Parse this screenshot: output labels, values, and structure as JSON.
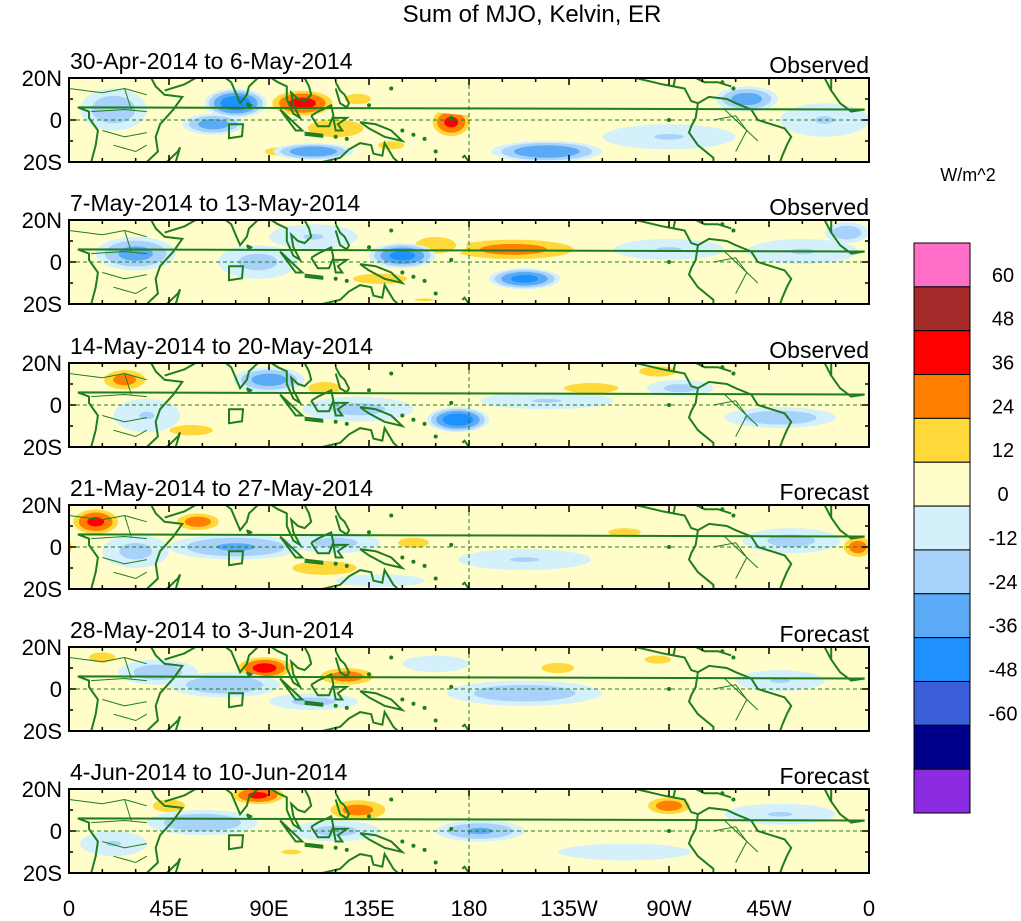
{
  "title": "Sum of MJO, Kelvin, ER",
  "colors": {
    "coast": "#1e7d1e",
    "background_panel": "#ffffff",
    "bins": [
      "#8a2be2",
      "#00008b",
      "#3a5fd9",
      "#1e90ff",
      "#5aaaf6",
      "#a8d2fa",
      "#d4f0fb",
      "#fffdca",
      "#ffd93a",
      "#ff7f00",
      "#ff0000",
      "#a52a2a",
      "#ff6ec7"
    ]
  },
  "colorbar": {
    "unit": "W/m^2",
    "levels": [
      60,
      48,
      36,
      24,
      12,
      0,
      -12,
      -24,
      -36,
      -48,
      -60
    ],
    "level_labels": [
      "60",
      "48",
      "36",
      "24",
      "12",
      "0",
      "-12",
      "-24",
      "-36",
      "-48",
      "-60"
    ]
  },
  "lat_labels": [
    "20N",
    "0",
    "20S"
  ],
  "lon_labels": [
    "0",
    "45E",
    "90E",
    "135E",
    "180",
    "135W",
    "90W",
    "45W",
    "0"
  ],
  "panels": [
    {
      "title": "30-Apr-2014 to 6-May-2014",
      "type": "Observed",
      "anomalies": [
        {
          "lon": 105,
          "lat": 8,
          "rx": 16,
          "ry": 7,
          "v": 40
        },
        {
          "lon": 120,
          "lat": -4,
          "rx": 18,
          "ry": 6,
          "v": 22
        },
        {
          "lon": 130,
          "lat": 10,
          "rx": 12,
          "ry": 5,
          "v": 15
        },
        {
          "lon": 145,
          "lat": -12,
          "rx": 12,
          "ry": 4,
          "v": 15
        },
        {
          "lon": 172,
          "lat": -1,
          "rx": 10,
          "ry": 8,
          "v": 38
        },
        {
          "lon": 190,
          "lat": 8,
          "rx": 35,
          "ry": 6,
          "v": 8
        },
        {
          "lon": 95,
          "lat": -15,
          "rx": 14,
          "ry": 4,
          "v": 15
        },
        {
          "lon": 75,
          "lat": 8,
          "rx": 14,
          "ry": 7,
          "v": -45
        },
        {
          "lon": 65,
          "lat": -2,
          "rx": 14,
          "ry": 5,
          "v": -30
        },
        {
          "lon": 20,
          "lat": 5,
          "rx": 15,
          "ry": 10,
          "v": -20
        },
        {
          "lon": 110,
          "lat": -15,
          "rx": 18,
          "ry": 4,
          "v": -35
        },
        {
          "lon": 215,
          "lat": -15,
          "rx": 25,
          "ry": 5,
          "v": -35
        },
        {
          "lon": 305,
          "lat": 10,
          "rx": 14,
          "ry": 6,
          "v": -30
        },
        {
          "lon": 270,
          "lat": -8,
          "rx": 30,
          "ry": 6,
          "v": -12
        },
        {
          "lon": 340,
          "lat": 0,
          "rx": 20,
          "ry": 8,
          "v": -12
        },
        {
          "lon": 250,
          "lat": 12,
          "rx": 25,
          "ry": 5,
          "v": 5
        }
      ]
    },
    {
      "title": "7-May-2014 to 13-May-2014",
      "type": "Observed",
      "anomalies": [
        {
          "lon": 200,
          "lat": 6,
          "rx": 35,
          "ry": 6,
          "v": 28
        },
        {
          "lon": 165,
          "lat": 8,
          "rx": 14,
          "ry": 6,
          "v": 20
        },
        {
          "lon": 140,
          "lat": -8,
          "rx": 25,
          "ry": 5,
          "v": 15
        },
        {
          "lon": 160,
          "lat": -18,
          "rx": 20,
          "ry": 3,
          "v": 12
        },
        {
          "lon": 50,
          "lat": -12,
          "rx": 20,
          "ry": 5,
          "v": 8
        },
        {
          "lon": 150,
          "lat": 3,
          "rx": 15,
          "ry": 6,
          "v": -40
        },
        {
          "lon": 205,
          "lat": -8,
          "rx": 16,
          "ry": 5,
          "v": -40
        },
        {
          "lon": 30,
          "lat": 4,
          "rx": 18,
          "ry": 8,
          "v": -28
        },
        {
          "lon": 85,
          "lat": 0,
          "rx": 18,
          "ry": 8,
          "v": -15
        },
        {
          "lon": 270,
          "lat": 6,
          "rx": 25,
          "ry": 5,
          "v": -12
        },
        {
          "lon": 330,
          "lat": 5,
          "rx": 25,
          "ry": 6,
          "v": -12
        },
        {
          "lon": 110,
          "lat": 12,
          "rx": 20,
          "ry": 6,
          "v": -12
        },
        {
          "lon": 350,
          "lat": 14,
          "rx": 10,
          "ry": 5,
          "v": -20
        }
      ]
    },
    {
      "title": "14-May-2014 to 20-May-2014",
      "type": "Observed",
      "anomalies": [
        {
          "lon": 25,
          "lat": 12,
          "rx": 12,
          "ry": 6,
          "v": 28
        },
        {
          "lon": 55,
          "lat": -12,
          "rx": 20,
          "ry": 5,
          "v": 15
        },
        {
          "lon": 115,
          "lat": 8,
          "rx": 15,
          "ry": 6,
          "v": 15
        },
        {
          "lon": 235,
          "lat": 8,
          "rx": 25,
          "ry": 5,
          "v": 15
        },
        {
          "lon": 200,
          "lat": 12,
          "rx": 20,
          "ry": 4,
          "v": 10
        },
        {
          "lon": 265,
          "lat": 16,
          "rx": 14,
          "ry": 4,
          "v": 18
        },
        {
          "lon": 175,
          "lat": -7,
          "rx": 14,
          "ry": 6,
          "v": -45
        },
        {
          "lon": 90,
          "lat": 12,
          "rx": 16,
          "ry": 6,
          "v": -30
        },
        {
          "lon": 130,
          "lat": -2,
          "rx": 25,
          "ry": 6,
          "v": -15
        },
        {
          "lon": 215,
          "lat": 2,
          "rx": 30,
          "ry": 4,
          "v": -12
        },
        {
          "lon": 320,
          "lat": -6,
          "rx": 25,
          "ry": 5,
          "v": -20
        },
        {
          "lon": 275,
          "lat": 8,
          "rx": 15,
          "ry": 4,
          "v": -15
        },
        {
          "lon": 35,
          "lat": -5,
          "rx": 15,
          "ry": 8,
          "v": -12
        }
      ]
    },
    {
      "title": "21-May-2014 to 27-May-2014",
      "type": "Forecast",
      "anomalies": [
        {
          "lon": 12,
          "lat": 12,
          "rx": 12,
          "ry": 7,
          "v": 38
        },
        {
          "lon": 58,
          "lat": 12,
          "rx": 12,
          "ry": 5,
          "v": 30
        },
        {
          "lon": 115,
          "lat": -10,
          "rx": 22,
          "ry": 5,
          "v": 20
        },
        {
          "lon": 155,
          "lat": 2,
          "rx": 14,
          "ry": 5,
          "v": 15
        },
        {
          "lon": 250,
          "lat": 7,
          "rx": 15,
          "ry": 4,
          "v": 15
        },
        {
          "lon": 355,
          "lat": 0,
          "rx": 8,
          "ry": 6,
          "v": 30
        },
        {
          "lon": 200,
          "lat": 10,
          "rx": 25,
          "ry": 4,
          "v": 5
        },
        {
          "lon": 75,
          "lat": 0,
          "rx": 30,
          "ry": 6,
          "v": -25
        },
        {
          "lon": 120,
          "lat": 2,
          "rx": 20,
          "ry": 5,
          "v": -15
        },
        {
          "lon": 30,
          "lat": -2,
          "rx": 15,
          "ry": 8,
          "v": -15
        },
        {
          "lon": 325,
          "lat": 3,
          "rx": 22,
          "ry": 6,
          "v": -15
        },
        {
          "lon": 205,
          "lat": -6,
          "rx": 30,
          "ry": 5,
          "v": -12
        },
        {
          "lon": 140,
          "lat": -16,
          "rx": 20,
          "ry": 3,
          "v": -10
        }
      ]
    },
    {
      "title": "28-May-2014 to 3-Jun-2014",
      "type": "Forecast",
      "anomalies": [
        {
          "lon": 88,
          "lat": 10,
          "rx": 14,
          "ry": 6,
          "v": 40
        },
        {
          "lon": 125,
          "lat": 6,
          "rx": 15,
          "ry": 5,
          "v": 30
        },
        {
          "lon": 15,
          "lat": 15,
          "rx": 12,
          "ry": 5,
          "v": 15
        },
        {
          "lon": 220,
          "lat": 10,
          "rx": 15,
          "ry": 5,
          "v": 15
        },
        {
          "lon": 265,
          "lat": 14,
          "rx": 12,
          "ry": 4,
          "v": 15
        },
        {
          "lon": 90,
          "lat": -12,
          "rx": 20,
          "ry": 5,
          "v": 10
        },
        {
          "lon": 70,
          "lat": 2,
          "rx": 25,
          "ry": 6,
          "v": -22
        },
        {
          "lon": 40,
          "lat": 8,
          "rx": 18,
          "ry": 6,
          "v": -18
        },
        {
          "lon": 205,
          "lat": -2,
          "rx": 35,
          "ry": 6,
          "v": -20
        },
        {
          "lon": 110,
          "lat": -6,
          "rx": 20,
          "ry": 4,
          "v": -15
        },
        {
          "lon": 320,
          "lat": 4,
          "rx": 20,
          "ry": 5,
          "v": -12
        },
        {
          "lon": 165,
          "lat": 12,
          "rx": 15,
          "ry": 4,
          "v": -10
        }
      ]
    },
    {
      "title": "4-Jun-2014 to 10-Jun-2014",
      "type": "Forecast",
      "anomalies": [
        {
          "lon": 85,
          "lat": 17,
          "rx": 14,
          "ry": 5,
          "v": 38
        },
        {
          "lon": 130,
          "lat": 10,
          "rx": 16,
          "ry": 6,
          "v": 28
        },
        {
          "lon": 270,
          "lat": 12,
          "rx": 12,
          "ry": 5,
          "v": 30
        },
        {
          "lon": 45,
          "lat": 12,
          "rx": 12,
          "ry": 5,
          "v": 18
        },
        {
          "lon": 100,
          "lat": -10,
          "rx": 20,
          "ry": 5,
          "v": 12
        },
        {
          "lon": 225,
          "lat": 5,
          "rx": 20,
          "ry": 4,
          "v": 10
        },
        {
          "lon": 60,
          "lat": 4,
          "rx": 25,
          "ry": 6,
          "v": -22
        },
        {
          "lon": 185,
          "lat": 0,
          "rx": 20,
          "ry": 5,
          "v": -25
        },
        {
          "lon": 120,
          "lat": 0,
          "rx": 20,
          "ry": 5,
          "v": -15
        },
        {
          "lon": 20,
          "lat": -6,
          "rx": 15,
          "ry": 6,
          "v": -12
        },
        {
          "lon": 320,
          "lat": 8,
          "rx": 25,
          "ry": 5,
          "v": -12
        },
        {
          "lon": 250,
          "lat": -10,
          "rx": 30,
          "ry": 4,
          "v": -8
        }
      ]
    }
  ]
}
